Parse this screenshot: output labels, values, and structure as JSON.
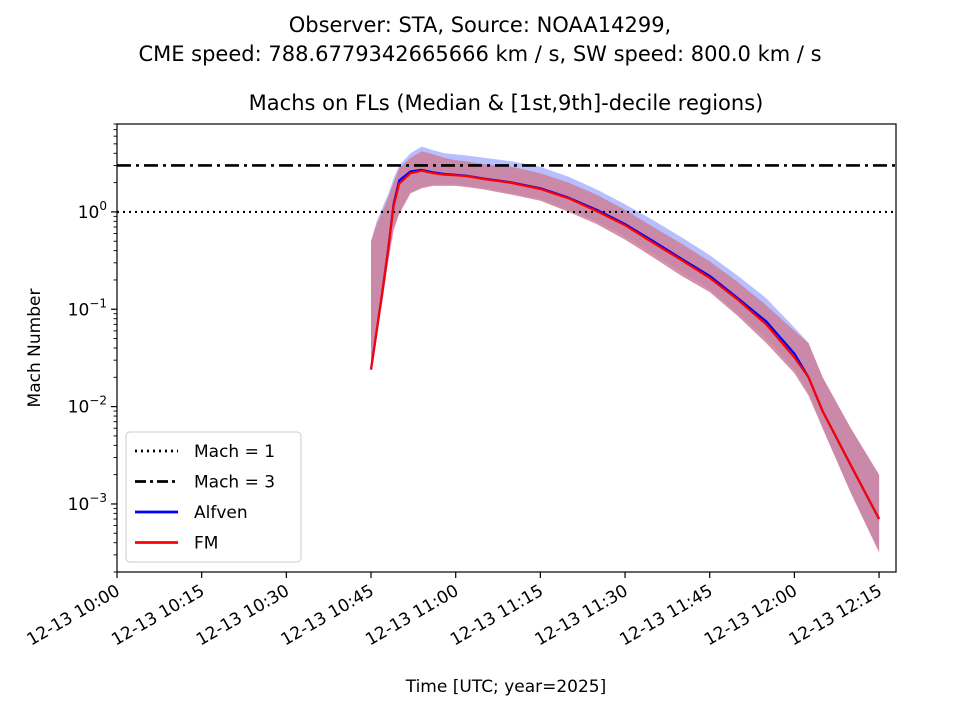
{
  "chart_data": {
    "type": "line",
    "suptitle_line1": "Observer: STA, Source: NOAA14299,",
    "suptitle_line2": "CME speed: 788.6779342665666 km / s, SW speed: 800.0 km / s",
    "title": "Machs on FLs (Median & [1st,9th]-decile regions)",
    "xlabel": "Time [UTC; year=2025]",
    "ylabel": "Mach Number",
    "yscale": "log",
    "ylim": [
      0.0002,
      8
    ],
    "xlim_minutes_after_1000": [
      0,
      138
    ],
    "x_tick_minutes": [
      0,
      15,
      30,
      45,
      60,
      75,
      90,
      105,
      120,
      135
    ],
    "x_tick_labels": [
      "12-13 10:00",
      "12-13 10:15",
      "12-13 10:30",
      "12-13 10:45",
      "12-13 11:00",
      "12-13 11:15",
      "12-13 11:30",
      "12-13 11:45",
      "12-13 12:00",
      "12-13 12:15"
    ],
    "y_tick_labels": [
      {
        "base": "10",
        "exp": "−3",
        "value": 0.001
      },
      {
        "base": "10",
        "exp": "−2",
        "value": 0.01
      },
      {
        "base": "10",
        "exp": "−1",
        "value": 0.1
      },
      {
        "base": "10",
        "exp": "0",
        "value": 1
      }
    ],
    "reference_lines": [
      {
        "name": "Mach = 1",
        "value": 1,
        "style": "dotted",
        "color": "#000000"
      },
      {
        "name": "Mach = 3",
        "value": 3,
        "style": "dashdot",
        "color": "#000000"
      }
    ],
    "legend": {
      "location": "lower-left",
      "entries": [
        "Mach = 1",
        "Mach = 3",
        "Alfven",
        "FM"
      ]
    },
    "series": [
      {
        "name": "Alfven",
        "color": "#0000ff",
        "band_color": "#9aa4ff",
        "x": [
          45,
          46,
          47,
          48,
          49,
          50,
          52,
          54,
          56,
          58,
          60,
          62,
          65,
          70,
          75,
          80,
          85,
          90,
          95,
          100,
          105,
          110,
          115,
          120,
          122.5,
          125,
          130,
          135
        ],
        "y": [
          0.024,
          0.06,
          0.15,
          0.4,
          1.2,
          2.1,
          2.6,
          2.7,
          2.55,
          2.45,
          2.4,
          2.35,
          2.2,
          2.0,
          1.75,
          1.4,
          1.05,
          0.75,
          0.5,
          0.33,
          0.22,
          0.13,
          0.075,
          0.035,
          0.02,
          0.009,
          0.0025,
          0.0007
        ],
        "lower": [
          0.024,
          0.06,
          0.12,
          0.3,
          0.7,
          1.0,
          1.6,
          1.8,
          1.9,
          1.9,
          1.9,
          1.85,
          1.75,
          1.55,
          1.35,
          1.05,
          0.8,
          0.56,
          0.37,
          0.24,
          0.16,
          0.09,
          0.05,
          0.024,
          0.014,
          0.006,
          0.0013,
          0.00032
        ],
        "upper": [
          0.5,
          0.8,
          1.1,
          1.5,
          2.2,
          3.0,
          4.0,
          4.7,
          4.3,
          4.0,
          3.9,
          3.8,
          3.6,
          3.3,
          2.9,
          2.3,
          1.7,
          1.2,
          0.82,
          0.55,
          0.36,
          0.22,
          0.13,
          0.065,
          0.045,
          0.02,
          0.006,
          0.002
        ]
      },
      {
        "name": "FM",
        "color": "#ff0000",
        "band_color": "#cc7f99",
        "x": [
          45,
          46,
          47,
          48,
          49,
          50,
          52,
          54,
          56,
          58,
          60,
          62,
          65,
          70,
          75,
          80,
          85,
          90,
          95,
          100,
          105,
          110,
          115,
          120,
          122.5,
          125,
          130,
          135
        ],
        "y": [
          0.024,
          0.06,
          0.15,
          0.4,
          1.15,
          1.95,
          2.5,
          2.65,
          2.5,
          2.42,
          2.38,
          2.33,
          2.18,
          1.98,
          1.72,
          1.38,
          1.02,
          0.73,
          0.48,
          0.32,
          0.21,
          0.125,
          0.07,
          0.032,
          0.02,
          0.009,
          0.0025,
          0.0007
        ],
        "lower": [
          0.024,
          0.06,
          0.12,
          0.3,
          0.65,
          0.95,
          1.55,
          1.75,
          1.85,
          1.85,
          1.85,
          1.8,
          1.7,
          1.5,
          1.3,
          1.0,
          0.75,
          0.52,
          0.34,
          0.22,
          0.15,
          0.085,
          0.045,
          0.022,
          0.013,
          0.006,
          0.0013,
          0.00032
        ],
        "upper": [
          0.5,
          0.75,
          1.0,
          1.4,
          2.0,
          2.8,
          3.6,
          4.2,
          3.9,
          3.6,
          3.4,
          3.3,
          3.1,
          2.9,
          2.5,
          2.0,
          1.5,
          1.05,
          0.7,
          0.47,
          0.31,
          0.19,
          0.11,
          0.06,
          0.045,
          0.02,
          0.006,
          0.002
        ]
      }
    ]
  }
}
